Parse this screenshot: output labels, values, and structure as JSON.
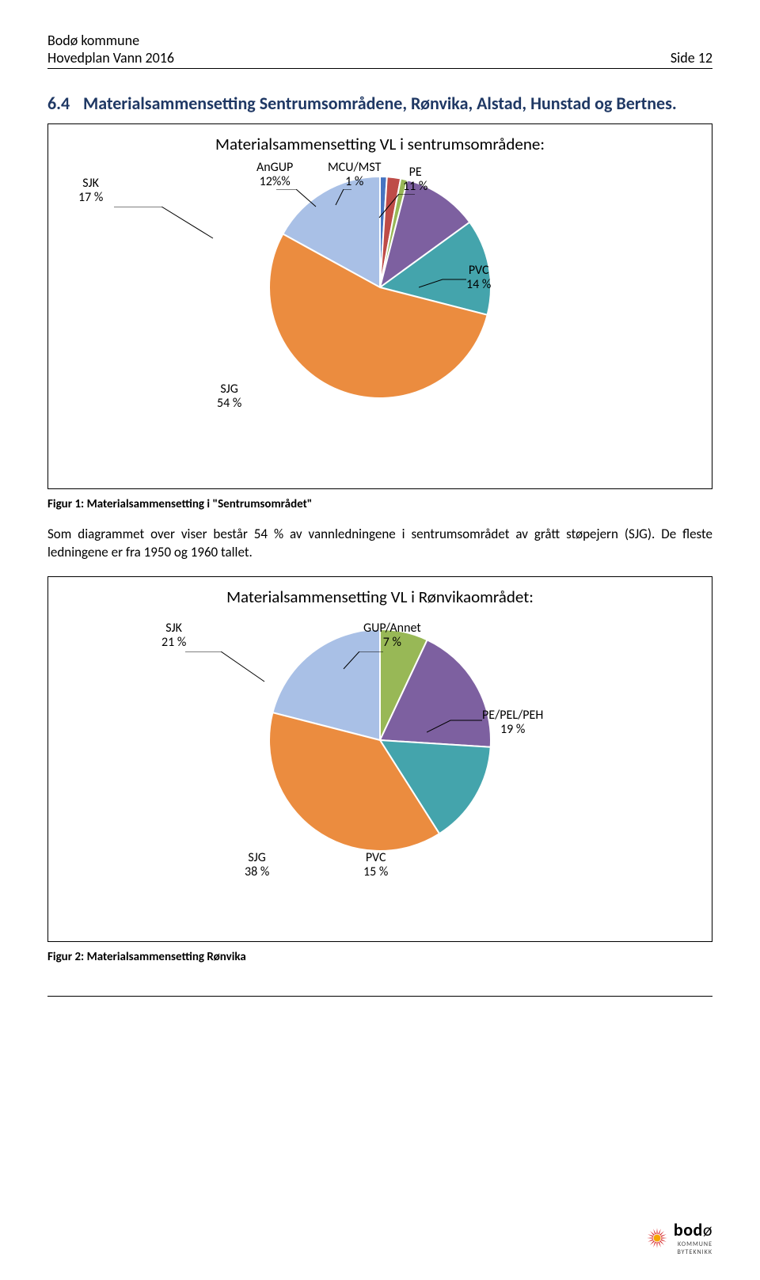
{
  "header": {
    "org": "Bodø kommune",
    "doc": "Hovedplan Vann 2016",
    "page_label": "Side 12"
  },
  "section": {
    "number": "6.4",
    "title": "Materialsammensetting Sentrumsområdene, Rønvika, Alstad, Hunstad og Bertnes."
  },
  "chart1": {
    "type": "pie",
    "title": "Materialsammensetting  VL i sentrumsområdene:",
    "background_color": "#ffffff",
    "label_fontsize": 16,
    "title_fontsize": 21,
    "slices": [
      {
        "name": "SJK",
        "pct": 17,
        "color": "#a9c0e6",
        "label": "SJK\n17 %"
      },
      {
        "name": "Annet",
        "pct": 1,
        "color": "#4674c1",
        "label": "Annet\n1 %"
      },
      {
        "name": "GUP",
        "pct": 2,
        "color": "#be4c48",
        "label": "GUP\n2 %"
      },
      {
        "name": "MCU/MST",
        "pct": 1,
        "color": "#98b856",
        "label": "MCU/MST\n1 %"
      },
      {
        "name": "PE",
        "pct": 11,
        "color": "#7d60a0",
        "label": "PE\n11 %"
      },
      {
        "name": "PVC",
        "pct": 14,
        "color": "#44a4ac",
        "label": "PVC\n14 %"
      },
      {
        "name": "SJG",
        "pct": 54,
        "color": "#eb8c3f",
        "label": "SJG\n54 %"
      }
    ],
    "caption": "Figur 1: Materialsammensetting i \"Sentrumsområdet\""
  },
  "paragraph1": "Som diagrammet over viser består 54 % av vannledningene i sentrumsområdet av grått støpejern (SJG). De fleste ledningene er fra 1950 og 1960 tallet.",
  "chart2": {
    "type": "pie",
    "title": "Materialsammensetting VL i Rønvikaområdet:",
    "background_color": "#ffffff",
    "label_fontsize": 16,
    "title_fontsize": 21,
    "slices": [
      {
        "name": "SJK",
        "pct": 21,
        "color": "#a9c0e6",
        "label": "SJK\n21 %"
      },
      {
        "name": "GUP/Annet",
        "pct": 7,
        "color": "#98b856",
        "label": "GUP/Annet\n7 %"
      },
      {
        "name": "PE/PEL/PEH",
        "pct": 19,
        "color": "#7d60a0",
        "label": "PE/PEL/PEH\n19 %"
      },
      {
        "name": "PVC",
        "pct": 15,
        "color": "#44a4ac",
        "label": "PVC\n15 %"
      },
      {
        "name": "SJG",
        "pct": 38,
        "color": "#eb8c3f",
        "label": "SJG\n38 %"
      }
    ],
    "caption": "Figur 2: Materialsammensetting Rønvika"
  },
  "footer": {
    "logo_text_bold": "bod",
    "logo_text_light": "ø",
    "logo_sub1": "KOMMUNE",
    "logo_sub2": "BYTEKNIKK",
    "sun_color": "#d62828",
    "sun_accent": "#f6a400"
  }
}
